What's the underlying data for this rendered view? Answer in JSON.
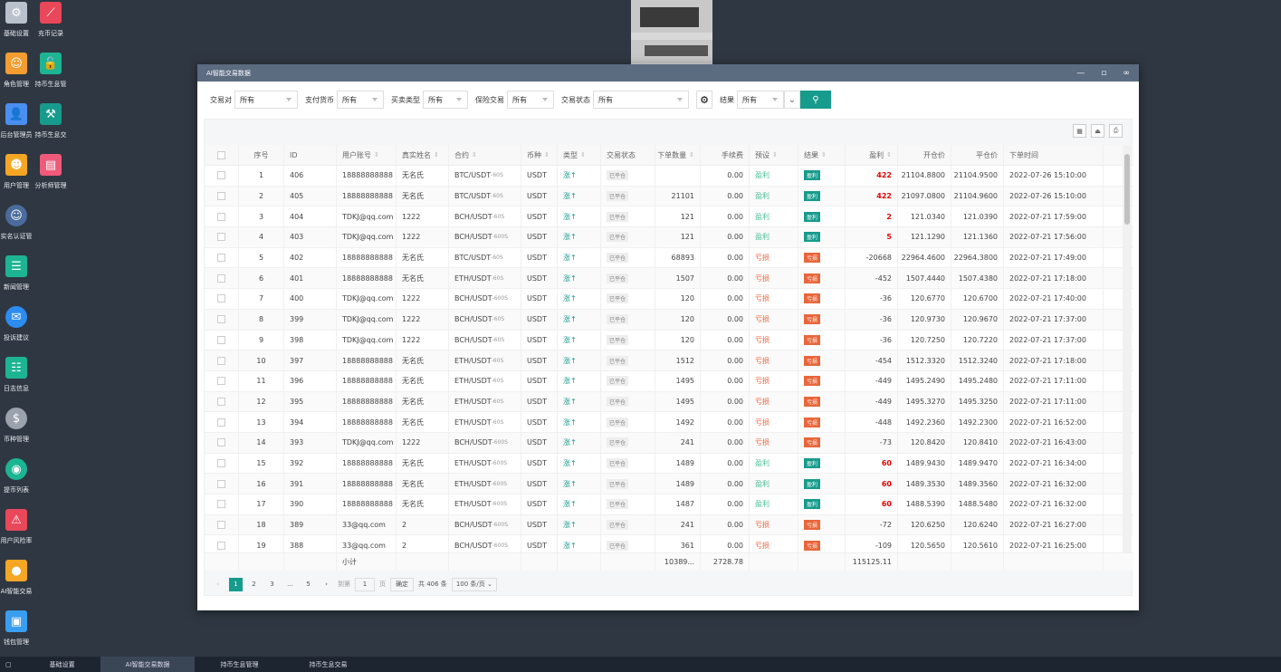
{
  "desktop": [
    {
      "label": "基础设置",
      "icon": "gear-icon",
      "color": "#b9c1cc"
    },
    {
      "label": "充币记录",
      "icon": "chart-down-icon",
      "color": "#e9475a"
    },
    {
      "label": "角色管理",
      "icon": "roles-icon",
      "color": "#f39c2f"
    },
    {
      "label": "持币生息管",
      "icon": "unlock-icon",
      "color": "#1cb492"
    },
    {
      "label": "后台管理员",
      "icon": "admin-user-icon",
      "color": "#4a8ff0"
    },
    {
      "label": "持币生息交",
      "icon": "hammer-icon",
      "color": "#169b8c"
    },
    {
      "label": "用户管理",
      "icon": "user-search-icon",
      "color": "#f5a623"
    },
    {
      "label": "分析师管理",
      "icon": "store-icon",
      "color": "#f05a7a"
    },
    {
      "label": "实名认证管",
      "icon": "id-verify-icon",
      "color": "#4a6b9c"
    },
    {
      "label": "新闻管理",
      "icon": "news-icon",
      "color": "#1cb492"
    },
    {
      "label": "投诉建议",
      "icon": "mail-icon",
      "color": "#2d8cf0"
    },
    {
      "label": "日志信息",
      "icon": "log-icon",
      "color": "#1cb492"
    },
    {
      "label": "币种管理",
      "icon": "dollar-icon",
      "color": "#9aa3ad"
    },
    {
      "label": "提币列表",
      "icon": "coin-icon",
      "color": "#1cb492"
    },
    {
      "label": "用户风险率",
      "icon": "alarm-icon",
      "color": "#e9475a"
    },
    {
      "label": "AI智能交易",
      "icon": "money-bag-icon",
      "color": "#f5a623"
    },
    {
      "label": "钱包管理",
      "icon": "wallet-icon",
      "color": "#3a9ef0"
    }
  ],
  "window": {
    "title": "AI智能交易数据",
    "controls": [
      "—",
      "▫",
      "∞"
    ]
  },
  "filters": [
    {
      "label": "交易对",
      "value": "所有"
    },
    {
      "label": "支付货币",
      "value": "所有"
    },
    {
      "label": "买卖类型",
      "value": "所有"
    },
    {
      "label": "保险交易",
      "value": "所有"
    },
    {
      "label": "交易状态",
      "value": "所有"
    },
    {
      "label": "结果",
      "value": "所有"
    }
  ],
  "table": {
    "headers": [
      "序号",
      "ID",
      "用户账号",
      "真实姓名",
      "合约",
      "币种",
      "类型",
      "交易状态",
      "下单数量",
      "手续费",
      "预设",
      "结果",
      "盈利",
      "开仓价",
      "平仓价",
      "下单时间"
    ],
    "type_label": "涨↑",
    "status_label": "已平仓",
    "rows": [
      [
        "1",
        "406",
        "18888888888",
        "无名氏",
        "BTC/USDT",
        "-60S",
        "USDT",
        "",
        "",
        "0.00",
        "盈利",
        "盈利",
        "422",
        "21104.8800",
        "21104.9500",
        "2022-07-26 15:10:00"
      ],
      [
        "2",
        "405",
        "18888888888",
        "无名氏",
        "BTC/USDT",
        "-60S",
        "USDT",
        "",
        "21101",
        "0.00",
        "盈利",
        "盈利",
        "422",
        "21097.0800",
        "21104.9600",
        "2022-07-26 15:10:00"
      ],
      [
        "3",
        "404",
        "TDKJ@qq.com",
        "1222",
        "BCH/USDT",
        "-60S",
        "USDT",
        "",
        "121",
        "0.00",
        "盈利",
        "盈利",
        "2",
        "121.0340",
        "121.0390",
        "2022-07-21 17:59:00"
      ],
      [
        "4",
        "403",
        "TDKJ@qq.com",
        "1222",
        "BCH/USDT",
        "-600S",
        "USDT",
        "",
        "121",
        "0.00",
        "盈利",
        "盈利",
        "5",
        "121.1290",
        "121.1360",
        "2022-07-21 17:56:00"
      ],
      [
        "5",
        "402",
        "18888888888",
        "无名氏",
        "BTC/USDT",
        "-60S",
        "USDT",
        "",
        "68893",
        "0.00",
        "亏损",
        "亏损",
        "-20668",
        "22964.4600",
        "22964.3800",
        "2022-07-21 17:49:00"
      ],
      [
        "6",
        "401",
        "18888888888",
        "无名氏",
        "ETH/USDT",
        "-60S",
        "USDT",
        "",
        "1507",
        "0.00",
        "亏损",
        "亏损",
        "-452",
        "1507.4440",
        "1507.4380",
        "2022-07-21 17:18:00"
      ],
      [
        "7",
        "400",
        "TDKJ@qq.com",
        "1222",
        "BCH/USDT",
        "-600S",
        "USDT",
        "",
        "120",
        "0.00",
        "亏损",
        "亏损",
        "-36",
        "120.6770",
        "120.6700",
        "2022-07-21 17:40:00"
      ],
      [
        "8",
        "399",
        "TDKJ@qq.com",
        "1222",
        "BCH/USDT",
        "-60S",
        "USDT",
        "",
        "120",
        "0.00",
        "亏损",
        "亏损",
        "-36",
        "120.9730",
        "120.9670",
        "2022-07-21 17:37:00"
      ],
      [
        "9",
        "398",
        "TDKJ@qq.com",
        "1222",
        "BCH/USDT",
        "-60S",
        "USDT",
        "",
        "120",
        "0.00",
        "亏损",
        "亏损",
        "-36",
        "120.7250",
        "120.7220",
        "2022-07-21 17:37:00"
      ],
      [
        "10",
        "397",
        "18888888888",
        "无名氏",
        "ETH/USDT",
        "-60S",
        "USDT",
        "",
        "1512",
        "0.00",
        "亏损",
        "亏损",
        "-454",
        "1512.3320",
        "1512.3240",
        "2022-07-21 17:18:00"
      ],
      [
        "11",
        "396",
        "18888888888",
        "无名氏",
        "ETH/USDT",
        "-60S",
        "USDT",
        "",
        "1495",
        "0.00",
        "亏损",
        "亏损",
        "-449",
        "1495.2490",
        "1495.2480",
        "2022-07-21 17:11:00"
      ],
      [
        "12",
        "395",
        "18888888888",
        "无名氏",
        "ETH/USDT",
        "-60S",
        "USDT",
        "",
        "1495",
        "0.00",
        "亏损",
        "亏损",
        "-449",
        "1495.3270",
        "1495.3250",
        "2022-07-21 17:11:00"
      ],
      [
        "13",
        "394",
        "18888888888",
        "无名氏",
        "ETH/USDT",
        "-60S",
        "USDT",
        "",
        "1492",
        "0.00",
        "亏损",
        "亏损",
        "-448",
        "1492.2360",
        "1492.2300",
        "2022-07-21 16:52:00"
      ],
      [
        "14",
        "393",
        "TDKJ@qq.com",
        "1222",
        "BCH/USDT",
        "-600S",
        "USDT",
        "",
        "241",
        "0.00",
        "亏损",
        "亏损",
        "-73",
        "120.8420",
        "120.8410",
        "2022-07-21 16:43:00"
      ],
      [
        "15",
        "392",
        "18888888888",
        "无名氏",
        "ETH/USDT",
        "-600S",
        "USDT",
        "",
        "1489",
        "0.00",
        "盈利",
        "盈利",
        "60",
        "1489.9430",
        "1489.9470",
        "2022-07-21 16:34:00"
      ],
      [
        "16",
        "391",
        "18888888888",
        "无名氏",
        "ETH/USDT",
        "-600S",
        "USDT",
        "",
        "1489",
        "0.00",
        "盈利",
        "盈利",
        "60",
        "1489.3530",
        "1489.3560",
        "2022-07-21 16:32:00"
      ],
      [
        "17",
        "390",
        "18888888888",
        "无名氏",
        "ETH/USDT",
        "-600S",
        "USDT",
        "",
        "1487",
        "0.00",
        "盈利",
        "盈利",
        "60",
        "1488.5390",
        "1488.5480",
        "2022-07-21 16:32:00"
      ],
      [
        "18",
        "389",
        "33@qq.com",
        "2",
        "BCH/USDT",
        "-600S",
        "USDT",
        "",
        "241",
        "0.00",
        "亏损",
        "亏损",
        "-72",
        "120.6250",
        "120.6240",
        "2022-07-21 16:27:00"
      ],
      [
        "19",
        "388",
        "33@qq.com",
        "2",
        "BCH/USDT",
        "-600S",
        "USDT",
        "",
        "361",
        "0.00",
        "亏损",
        "亏损",
        "-109",
        "120.5650",
        "120.5610",
        "2022-07-21 16:25:00"
      ]
    ],
    "summary": {
      "label": "小计",
      "qty": "10389...",
      "fee": "2728.78",
      "profit": "115125.11"
    }
  },
  "pagination": {
    "pages": [
      "1",
      "2",
      "3",
      "...",
      "5"
    ],
    "goto": "到第",
    "page_input": "1",
    "page_unit": "页",
    "confirm": "确定",
    "total": "共 406 条",
    "size": "100 条/页"
  },
  "taskbar": [
    "基础设置",
    "AI智能交易数据",
    "持币生息管理",
    "持币生息交易"
  ],
  "taskbar_start": "▢"
}
